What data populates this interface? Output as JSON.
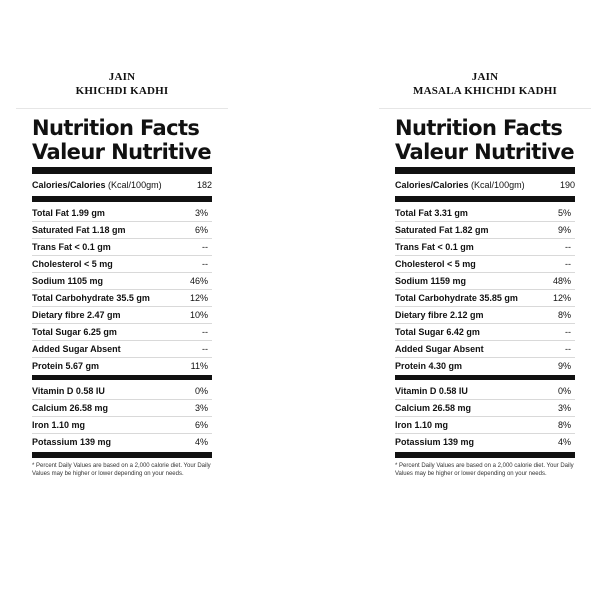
{
  "panels": [
    {
      "product_title_line1": "JAIN",
      "product_title_line2": "KHICHDI KADHI",
      "heading_en": "Nutrition Facts",
      "heading_fr": "Valeur Nutritive",
      "calories_label_bold": "Calories/Calories",
      "calories_label_unit": " (Kcal/100gm)",
      "calories_value": "182",
      "nutrients": [
        {
          "label": "Total Fat 1.99 gm",
          "dv": "3%"
        },
        {
          "label": "Saturated Fat 1.18 gm",
          "dv": "6%"
        },
        {
          "label": "Trans Fat < 0.1 gm",
          "dv": "--"
        },
        {
          "label": "Cholesterol < 5 mg",
          "dv": "--"
        },
        {
          "label": "Sodium 1105 mg",
          "dv": "46%"
        },
        {
          "label": "Total Carbohydrate 35.5 gm",
          "dv": "12%"
        },
        {
          "label": "Dietary fibre 2.47 gm",
          "dv": "10%"
        },
        {
          "label": "Total Sugar 6.25 gm",
          "dv": "--"
        },
        {
          "label": "Added Sugar Absent",
          "dv": "--"
        },
        {
          "label": "Protein 5.67 gm",
          "dv": "11%"
        }
      ],
      "minerals": [
        {
          "label": "Vitamin D 0.58 IU",
          "dv": "0%"
        },
        {
          "label": "Calcium 26.58 mg",
          "dv": "3%"
        },
        {
          "label": "Iron 1.10 mg",
          "dv": "6%"
        },
        {
          "label": "Potassium 139 mg",
          "dv": "4%"
        }
      ],
      "footnote": "* Percent Daily Values are based on a 2,000 calorie diet. Your Daily Values may be higher or lower depending on your needs."
    },
    {
      "product_title_line1": "JAIN",
      "product_title_line2": "MASALA KHICHDI KADHI",
      "heading_en": "Nutrition Facts",
      "heading_fr": "Valeur Nutritive",
      "calories_label_bold": "Calories/Calories",
      "calories_label_unit": " (Kcal/100gm)",
      "calories_value": "190",
      "nutrients": [
        {
          "label": "Total Fat 3.31 gm",
          "dv": "5%"
        },
        {
          "label": "Saturated Fat 1.82 gm",
          "dv": "9%"
        },
        {
          "label": "Trans Fat < 0.1 gm",
          "dv": "--"
        },
        {
          "label": "Cholesterol < 5 mg",
          "dv": "--"
        },
        {
          "label": "Sodium 1159 mg",
          "dv": "48%"
        },
        {
          "label": "Total Carbohydrate 35.85 gm",
          "dv": "12%"
        },
        {
          "label": "Dietary fibre 2.12 gm",
          "dv": "8%"
        },
        {
          "label": "Total Sugar 6.42 gm",
          "dv": "--"
        },
        {
          "label": "Added Sugar Absent",
          "dv": "--"
        },
        {
          "label": "Protein 4.30 gm",
          "dv": "9%"
        }
      ],
      "minerals": [
        {
          "label": "Vitamin D 0.58 IU",
          "dv": "0%"
        },
        {
          "label": "Calcium 26.58 mg",
          "dv": "3%"
        },
        {
          "label": "Iron 1.10 mg",
          "dv": "8%"
        },
        {
          "label": "Potassium 139 mg",
          "dv": "4%"
        }
      ],
      "footnote": "* Percent Daily Values are based on a 2,000 calorie diet. Your Daily Values may be higher or lower depending on your needs."
    }
  ]
}
